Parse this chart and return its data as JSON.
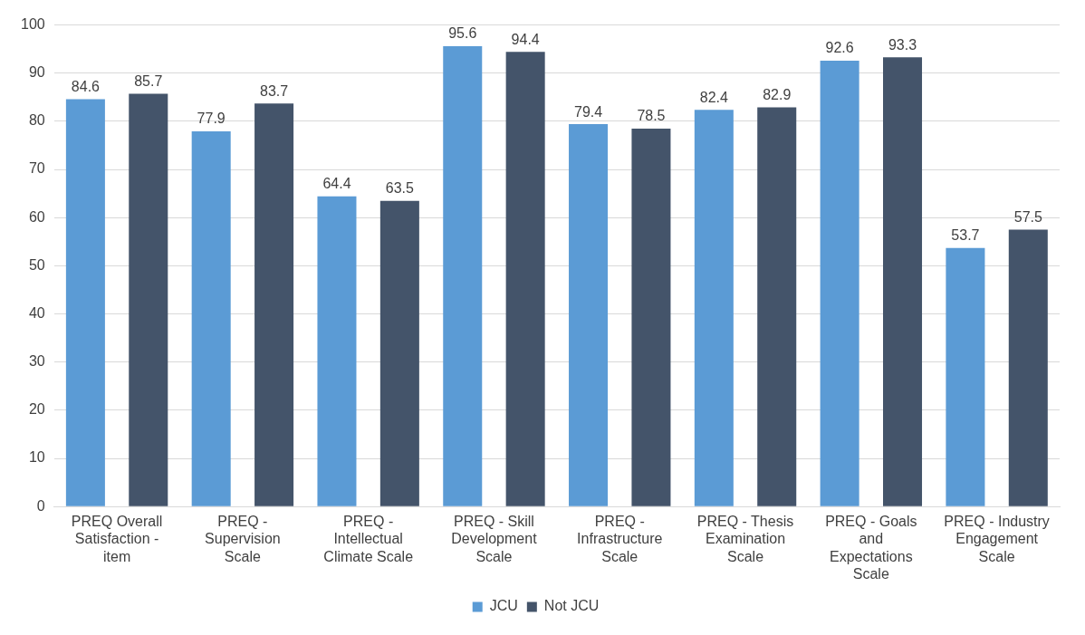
{
  "chart_data": {
    "type": "bar",
    "categories": [
      "PREQ Overall Satisfaction - item",
      "PREQ - Supervision Scale",
      "PREQ - Intellectual Climate Scale",
      "PREQ - Skill Development Scale",
      "PREQ - Infrastructure Scale",
      "PREQ - Thesis Examination Scale",
      "PREQ - Goals and Expectations Scale",
      "PREQ - Industry Engagement Scale"
    ],
    "series": [
      {
        "name": "JCU",
        "color": "#5b9bd5",
        "values": [
          84.6,
          77.9,
          64.4,
          95.6,
          79.4,
          82.4,
          92.6,
          53.7
        ]
      },
      {
        "name": "Not JCU",
        "color": "#44546a",
        "values": [
          85.7,
          83.7,
          63.5,
          94.4,
          78.5,
          82.9,
          93.3,
          57.5
        ]
      }
    ],
    "ylim": [
      0,
      100
    ],
    "yticks": [
      0,
      10,
      20,
      30,
      40,
      50,
      60,
      70,
      80,
      90,
      100
    ],
    "grid": "y",
    "legend": "bottom",
    "data_labels": true
  }
}
